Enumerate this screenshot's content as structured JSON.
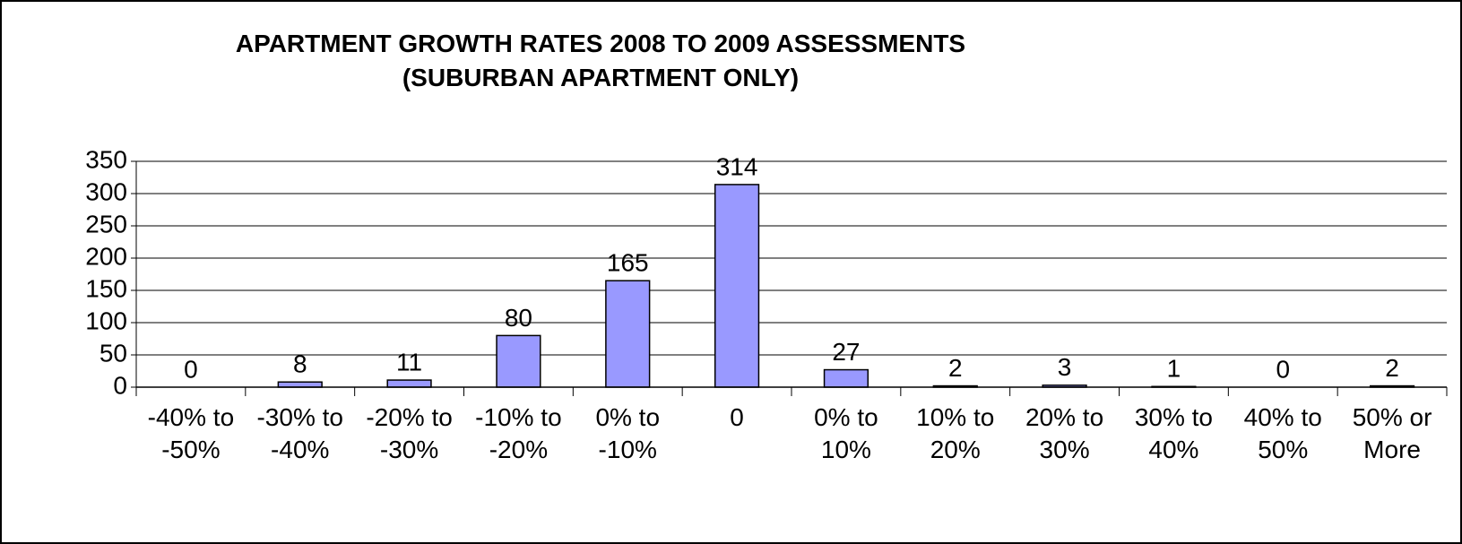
{
  "chart_data": {
    "type": "bar",
    "title": "APARTMENT GROWTH RATES 2008 TO 2009 ASSESSMENTS (SUBURBAN APARTMENT ONLY)",
    "categories": [
      "-40% to -50%",
      "-30% to -40%",
      "-20% to -30%",
      "-10% to -20%",
      "0% to -10%",
      "0",
      "0% to 10%",
      "10% to 20%",
      "20% to 30%",
      "30% to 40%",
      "40% to 50%",
      "50% or More"
    ],
    "values": [
      0,
      8,
      11,
      80,
      165,
      314,
      27,
      2,
      3,
      1,
      0,
      2
    ],
    "color": "#9999ff",
    "ylim": [
      0,
      350
    ],
    "yticks": [
      0,
      50,
      100,
      150,
      200,
      250,
      300,
      350
    ],
    "grid": true
  }
}
